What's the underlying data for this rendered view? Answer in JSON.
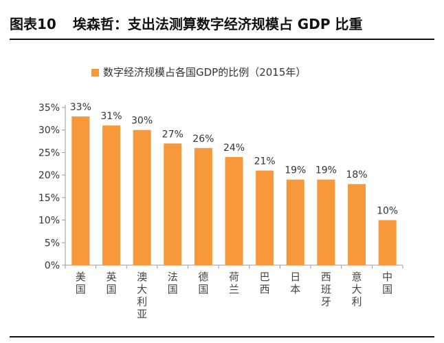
{
  "figure": {
    "number": "图表10",
    "title": "埃森哲：支出法测算数字经济规模占 GDP 比重"
  },
  "chart_data": {
    "type": "bar",
    "categories": [
      "美国",
      "英国",
      "澳大利亚",
      "法国",
      "德国",
      "荷兰",
      "巴西",
      "日本",
      "西班牙",
      "意大利",
      "中国"
    ],
    "series": [
      {
        "name": "数字经济规模占各国GDP的比例（2015年）",
        "values": [
          33,
          31,
          30,
          27,
          26,
          24,
          21,
          19,
          19,
          18,
          10
        ],
        "labels": [
          "33%",
          "31%",
          "30%",
          "27%",
          "26%",
          "24%",
          "21%",
          "19%",
          "19%",
          "18%",
          "10%"
        ]
      }
    ],
    "ylim": [
      0,
      35
    ],
    "yticks": [
      0,
      5,
      10,
      15,
      20,
      25,
      30,
      35
    ],
    "yticklabels": [
      "0%",
      "5%",
      "10%",
      "15%",
      "20%",
      "25%",
      "30%",
      "35%"
    ],
    "xlabel": "",
    "ylabel": "",
    "bar_color": "#F7983A",
    "grid": false,
    "legend_position": "top-center"
  }
}
